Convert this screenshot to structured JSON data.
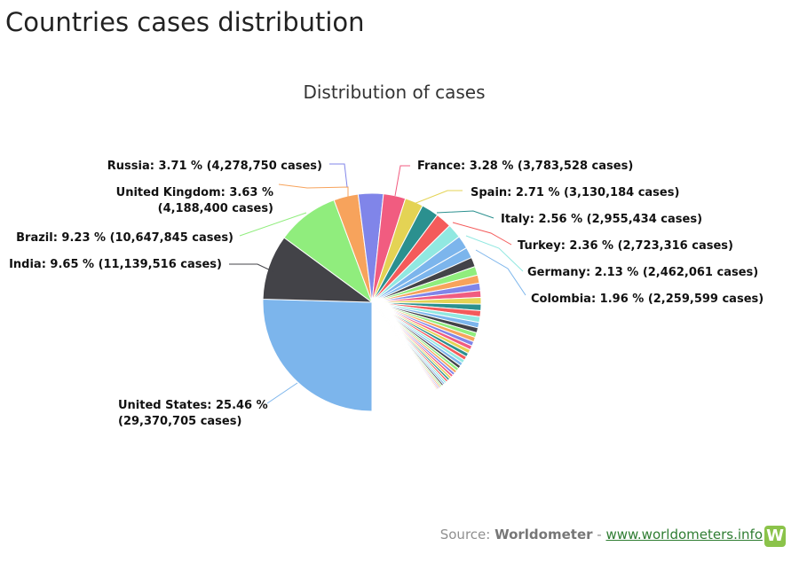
{
  "page": {
    "title": "Countries cases distribution"
  },
  "chart_data": {
    "type": "pie",
    "title": "Distribution of cases",
    "slices": [
      {
        "name": "United States",
        "percent": 25.46,
        "cases": "29,370,705",
        "color": "#7cb5ec",
        "label_lines": [
          "United States: 25.46 %",
          "(29,370,705 cases)"
        ]
      },
      {
        "name": "India",
        "percent": 9.65,
        "cases": "11,139,516",
        "color": "#434348",
        "label_lines": [
          "India: 9.65 % (11,139,516 cases)"
        ]
      },
      {
        "name": "Brazil",
        "percent": 9.23,
        "cases": "10,647,845",
        "color": "#90ed7d",
        "label_lines": [
          "Brazil: 9.23 % (10,647,845 cases)"
        ]
      },
      {
        "name": "United Kingdom",
        "percent": 3.63,
        "cases": "4,188,400",
        "color": "#f7a35c",
        "label_lines": [
          "United Kingdom: 3.63 %",
          "(4,188,400 cases)"
        ]
      },
      {
        "name": "Russia",
        "percent": 3.71,
        "cases": "4,278,750",
        "color": "#8085e9",
        "label_lines": [
          "Russia: 3.71 % (4,278,750 cases)"
        ]
      },
      {
        "name": "France",
        "percent": 3.28,
        "cases": "3,783,528",
        "color": "#f15c80",
        "label_lines": [
          "France: 3.28 % (3,783,528 cases)"
        ]
      },
      {
        "name": "Spain",
        "percent": 2.71,
        "cases": "3,130,184",
        "color": "#e4d354",
        "label_lines": [
          "Spain: 2.71 % (3,130,184 cases)"
        ]
      },
      {
        "name": "Italy",
        "percent": 2.56,
        "cases": "2,955,434",
        "color": "#2b908f",
        "label_lines": [
          "Italy: 2.56 % (2,955,434 cases)"
        ]
      },
      {
        "name": "Turkey",
        "percent": 2.36,
        "cases": "2,723,316",
        "color": "#f45b5b",
        "label_lines": [
          "Turkey: 2.36 % (2,723,316 cases)"
        ]
      },
      {
        "name": "Germany",
        "percent": 2.13,
        "cases": "2,462,061",
        "color": "#91e8e1",
        "label_lines": [
          "Germany: 2.13 % (2,462,061 cases)"
        ]
      },
      {
        "name": "Colombia",
        "percent": 1.96,
        "cases": "2,259,599",
        "color": "#7cb5ec",
        "label_lines": [
          "Colombia: 1.96 % (2,259,599 cases)"
        ]
      }
    ],
    "unlabeled_slice_percents": [
      1.6,
      1.4,
      1.3,
      1.2,
      1.1,
      1.0,
      1.0,
      0.95,
      0.9,
      0.85,
      0.8,
      0.75,
      0.7,
      0.68,
      0.65,
      0.62,
      0.6,
      0.57,
      0.55,
      0.52,
      0.5,
      0.47,
      0.45,
      0.42,
      0.4,
      0.38,
      0.36,
      0.34,
      0.32,
      0.3,
      0.28,
      0.26,
      0.24,
      0.22,
      0.2,
      0.18,
      0.16,
      0.14,
      0.12,
      0.1
    ],
    "palette": [
      "#7cb5ec",
      "#434348",
      "#90ed7d",
      "#f7a35c",
      "#8085e9",
      "#f15c80",
      "#e4d354",
      "#2b908f",
      "#f45b5b",
      "#91e8e1"
    ]
  },
  "source": {
    "prefix": "Source: ",
    "brand": "Worldometer",
    "separator": " - ",
    "link_text": "www.worldometers.info",
    "logo_letter": "W"
  }
}
